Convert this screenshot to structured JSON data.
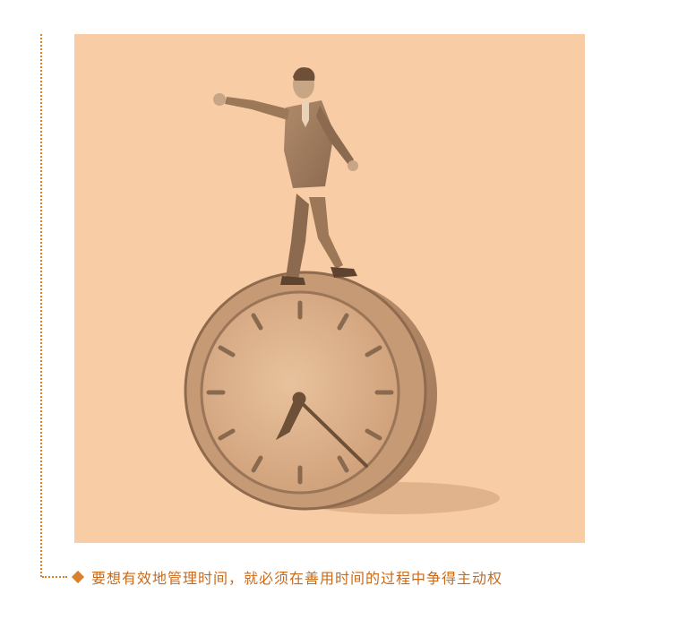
{
  "caption": {
    "text": "要想有效地管理时间，就必须在善用时间的过程中争得主动权",
    "bullet_icon": "diamond-icon"
  },
  "colors": {
    "accent": "#d9812b",
    "caption_text": "#c96a1b",
    "illustration_bg": "#f8cda5",
    "ink": "#8a6a4f"
  },
  "illustration": {
    "subject": "businessman-walking-on-clock-illustration"
  }
}
